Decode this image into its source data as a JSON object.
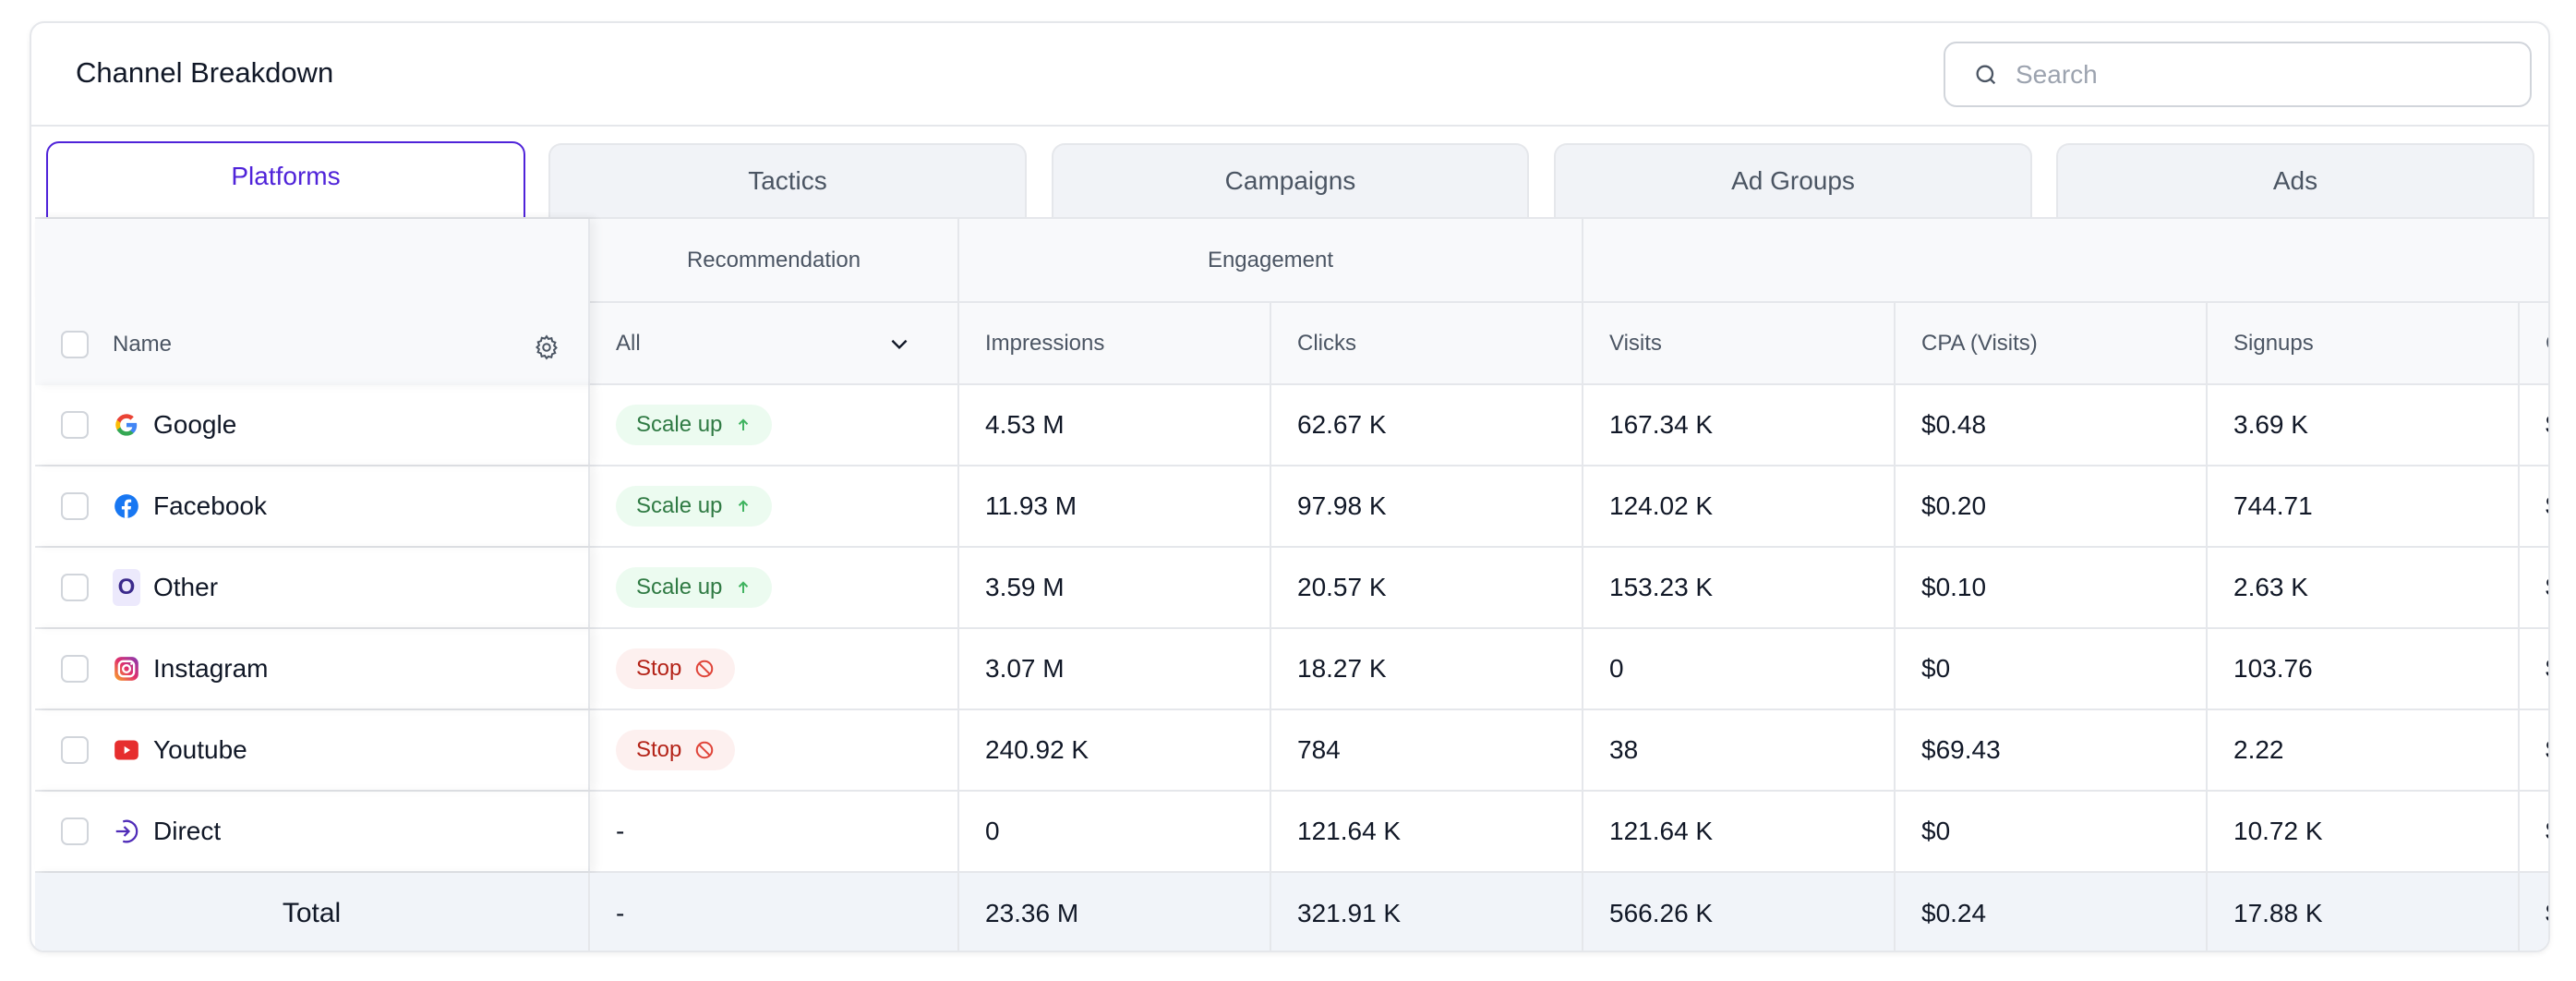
{
  "header": {
    "title": "Channel Breakdown",
    "search_placeholder": "Search"
  },
  "tabs": [
    "Platforms",
    "Tactics",
    "Campaigns",
    "Ad Groups",
    "Ads"
  ],
  "active_tab": "Platforms",
  "table": {
    "group_headers": {
      "recommendation": "Recommendation",
      "engagement": "Engagement"
    },
    "columns": {
      "name": "Name",
      "recommendation_filter": "All",
      "impressions": "Impressions",
      "clicks": "Clicks",
      "visits": "Visits",
      "cpa": "CPA (Visits)",
      "signups": "Signups",
      "partial": "C"
    },
    "rows": [
      {
        "name": "Google",
        "icon": "google-icon",
        "rec": "Scale up",
        "rec_type": "up",
        "impressions": "4.53 M",
        "clicks": "62.67 K",
        "visits": "167.34 K",
        "cpa": "$0.48",
        "signups": "3.69 K",
        "partial": "$"
      },
      {
        "name": "Facebook",
        "icon": "facebook-icon",
        "rec": "Scale up",
        "rec_type": "up",
        "impressions": "11.93 M",
        "clicks": "97.98 K",
        "visits": "124.02 K",
        "cpa": "$0.20",
        "signups": "744.71",
        "partial": "$"
      },
      {
        "name": "Other",
        "icon": "other-icon",
        "icon_letter": "O",
        "rec": "Scale up",
        "rec_type": "up",
        "impressions": "3.59 M",
        "clicks": "20.57 K",
        "visits": "153.23 K",
        "cpa": "$0.10",
        "signups": "2.63 K",
        "partial": "$"
      },
      {
        "name": "Instagram",
        "icon": "instagram-icon",
        "rec": "Stop",
        "rec_type": "stop",
        "impressions": "3.07 M",
        "clicks": "18.27 K",
        "visits": "0",
        "cpa": "$0",
        "signups": "103.76",
        "partial": "$"
      },
      {
        "name": "Youtube",
        "icon": "youtube-icon",
        "rec": "Stop",
        "rec_type": "stop",
        "impressions": "240.92 K",
        "clicks": "784",
        "visits": "38",
        "cpa": "$69.43",
        "signups": "2.22",
        "partial": "$"
      },
      {
        "name": "Direct",
        "icon": "direct-icon",
        "rec": "-",
        "rec_type": "none",
        "impressions": "0",
        "clicks": "121.64 K",
        "visits": "121.64 K",
        "cpa": "$0",
        "signups": "10.72 K",
        "partial": "$"
      }
    ],
    "total": {
      "label": "Total",
      "rec": "-",
      "impressions": "23.36 M",
      "clicks": "321.91 K",
      "visits": "566.26 K",
      "cpa": "$0.24",
      "signups": "17.88 K",
      "partial": "$"
    }
  },
  "colors": {
    "accent": "#4f23d9",
    "scale_up_bg": "#ecfbf0",
    "scale_up_text": "#2f7a43",
    "stop_bg": "#fdf0ef",
    "stop_text": "#b42318"
  }
}
